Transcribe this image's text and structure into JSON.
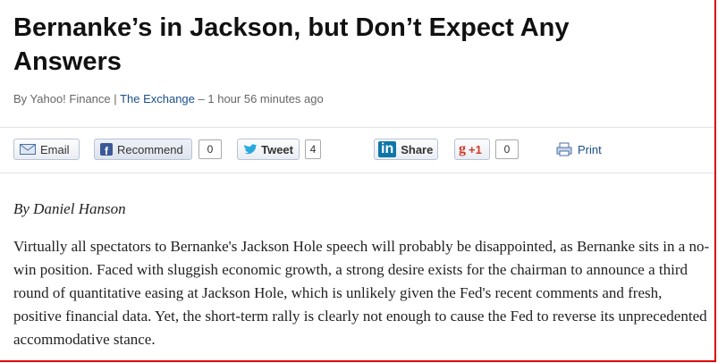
{
  "header": {
    "title": "Bernanke’s in Jackson, but Don’t Expect Any Answers"
  },
  "byline": {
    "source": "By Yahoo! Finance",
    "separator": "|",
    "section": "The Exchange",
    "time": "– 1 hour 56 minutes ago"
  },
  "toolbar": {
    "email": "Email",
    "recommend": "Recommend",
    "recommend_count": 0,
    "tweet": "Tweet",
    "tweet_count": 4,
    "linkedin_logo": "in",
    "share": "Share",
    "gplus": "+1",
    "gplus_count": 0,
    "print": "Print"
  },
  "article": {
    "author": "By Daniel Hanson",
    "paragraph": "Virtually all spectators to Bernanke's Jackson Hole speech will probably be disappointed, as Bernanke sits in a no-win position. Faced with sluggish economic growth, a strong desire exists for the chairman to announce a third round of quantitative easing at Jackson Hole, which is unlikely given the Fed's recent comments and fresh, positive financial data. Yet, the short-term rally is clearly not enough to cause the Fed to reverse its unprecedented accommodative stance."
  }
}
